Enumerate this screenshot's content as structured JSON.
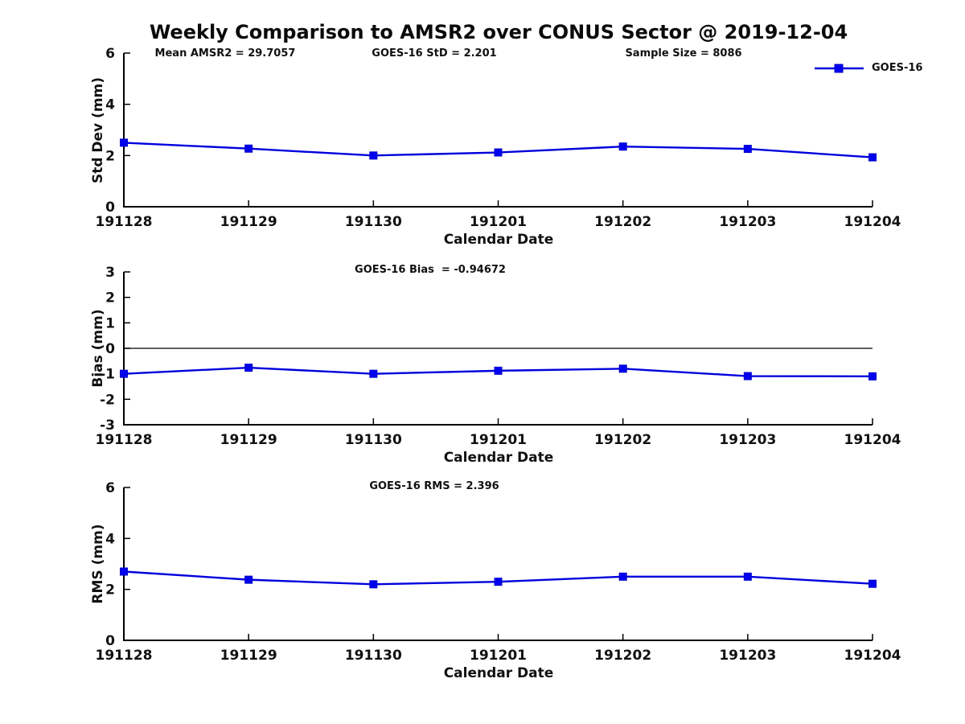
{
  "title": "Weekly Comparison to AMSR2 over CONUS Sector @ 2019-12-04",
  "legend": {
    "label": "GOES-16"
  },
  "colors": {
    "line": "#0000dd",
    "marker_fill": "#0000f0",
    "marker_edge": "#0000c8",
    "axis": "#000000",
    "text": "#111111"
  },
  "chart_data": [
    {
      "type": "line",
      "title": "",
      "ylabel": "Std Dev (mm)",
      "xlabel": "Calendar Date",
      "categories": [
        "191128",
        "191129",
        "191130",
        "191201",
        "191202",
        "191203",
        "191204"
      ],
      "series": [
        {
          "name": "GOES-16",
          "values": [
            2.5,
            2.27,
            2.0,
            2.12,
            2.35,
            2.26,
            1.93
          ]
        }
      ],
      "ylim": [
        0,
        6
      ],
      "yticks": [
        0,
        2,
        4,
        6
      ],
      "grid": false,
      "zero_line": false,
      "legend_position": "top-right",
      "annotations": [
        "Mean AMSR2 = 29.7057",
        "GOES-16 StD = 2.201",
        "Sample Size = 8086"
      ]
    },
    {
      "type": "line",
      "title": "",
      "ylabel": "Bias (mm)",
      "xlabel": "Calendar Date",
      "categories": [
        "191128",
        "191129",
        "191130",
        "191201",
        "191202",
        "191203",
        "191204"
      ],
      "series": [
        {
          "name": "GOES-16",
          "values": [
            -1.0,
            -0.76,
            -1.0,
            -0.88,
            -0.8,
            -1.09,
            -1.1
          ]
        }
      ],
      "ylim": [
        -3,
        3
      ],
      "yticks": [
        -3,
        -2,
        -1,
        0,
        1,
        2,
        3
      ],
      "grid": false,
      "zero_line": true,
      "legend_position": "none",
      "annotations": [
        "GOES-16 Bias  = -0.94672"
      ]
    },
    {
      "type": "line",
      "title": "",
      "ylabel": "RMS (mm)",
      "xlabel": "Calendar Date",
      "categories": [
        "191128",
        "191129",
        "191130",
        "191201",
        "191202",
        "191203",
        "191204"
      ],
      "series": [
        {
          "name": "GOES-16",
          "values": [
            2.7,
            2.38,
            2.2,
            2.3,
            2.5,
            2.5,
            2.22
          ]
        }
      ],
      "ylim": [
        0,
        6
      ],
      "yticks": [
        0,
        2,
        4,
        6
      ],
      "grid": false,
      "zero_line": false,
      "legend_position": "none",
      "annotations": [
        "GOES-16 RMS = 2.396"
      ]
    }
  ]
}
